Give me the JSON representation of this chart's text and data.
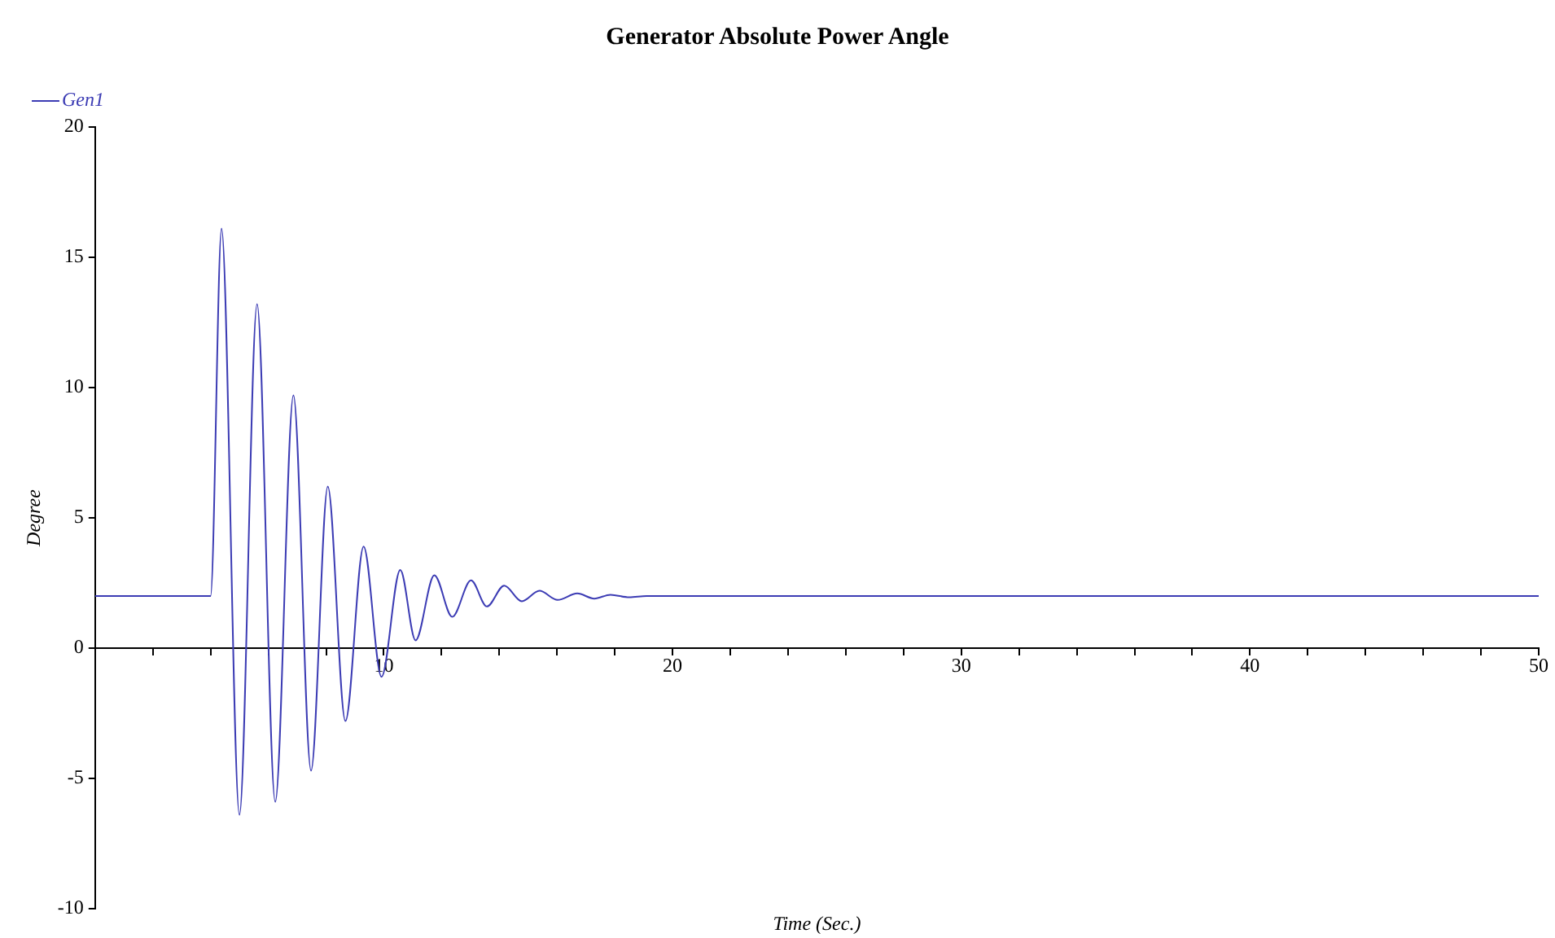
{
  "chart_data": {
    "type": "line",
    "title": "Generator Absolute Power Angle",
    "xlabel": "Time (Sec.)",
    "ylabel": "Degree",
    "xlim": [
      0,
      50
    ],
    "ylim": [
      -10,
      20
    ],
    "xticks": [
      {
        "value": 2,
        "label": null
      },
      {
        "value": 4,
        "label": null
      },
      {
        "value": 6,
        "label": null
      },
      {
        "value": 8,
        "label": null
      },
      10,
      {
        "value": 12,
        "label": null
      },
      {
        "value": 14,
        "label": null
      },
      {
        "value": 16,
        "label": null
      },
      {
        "value": 18,
        "label": null
      },
      20,
      {
        "value": 22,
        "label": null
      },
      {
        "value": 24,
        "label": null
      },
      {
        "value": 26,
        "label": null
      },
      {
        "value": 28,
        "label": null
      },
      30,
      {
        "value": 32,
        "label": null
      },
      {
        "value": 34,
        "label": null
      },
      {
        "value": 36,
        "label": null
      },
      {
        "value": 38,
        "label": null
      },
      40,
      {
        "value": 42,
        "label": null
      },
      {
        "value": 44,
        "label": null
      },
      {
        "value": 46,
        "label": null
      },
      {
        "value": 48,
        "label": null
      },
      50
    ],
    "yticks": [
      -10,
      -5,
      0,
      5,
      10,
      15,
      20
    ],
    "grid": false,
    "legend": "top left",
    "marker": "none",
    "line_style": "solid",
    "series": [
      {
        "name": "Gen1",
        "color": "#3c3cb4",
        "x": [
          0,
          4.0,
          4.38,
          5.0,
          5.61,
          6.24,
          6.87,
          7.48,
          8.06,
          8.67,
          9.3,
          9.92,
          10.57,
          11.1,
          11.75,
          12.37,
          13.02,
          13.57,
          14.17,
          14.78,
          15.39,
          16.02,
          16.7,
          17.29,
          17.85,
          18.5,
          19.1,
          50
        ],
        "values": [
          2,
          2,
          16.1,
          -6.4,
          13.2,
          -5.9,
          9.7,
          -4.7,
          6.2,
          -2.8,
          3.9,
          -1.1,
          3.0,
          0.3,
          2.8,
          1.2,
          2.6,
          1.6,
          2.4,
          1.8,
          2.2,
          1.85,
          2.1,
          1.9,
          2.05,
          1.95,
          2,
          2
        ]
      }
    ]
  }
}
